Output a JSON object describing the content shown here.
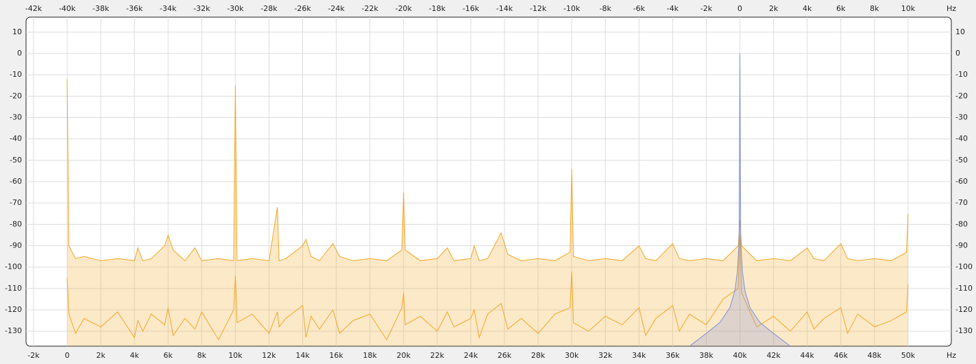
{
  "chart_data": {
    "type": "line",
    "x_unit": "Hz",
    "xlim": [
      -2445,
      52570
    ],
    "xticks": [
      {
        "value": -2000,
        "label": "-2k"
      },
      {
        "value": 0,
        "label": "0"
      },
      {
        "value": 2000,
        "label": "2k"
      },
      {
        "value": 4000,
        "label": "4k"
      },
      {
        "value": 6000,
        "label": "6k"
      },
      {
        "value": 8000,
        "label": "8k"
      },
      {
        "value": 10000,
        "label": "10k"
      },
      {
        "value": 12000,
        "label": "12k"
      },
      {
        "value": 14000,
        "label": "14k"
      },
      {
        "value": 16000,
        "label": "16k"
      },
      {
        "value": 18000,
        "label": "18k"
      },
      {
        "value": 20000,
        "label": "20k"
      },
      {
        "value": 22000,
        "label": "22k"
      },
      {
        "value": 24000,
        "label": "24k"
      },
      {
        "value": 26000,
        "label": "26k"
      },
      {
        "value": 28000,
        "label": "28k"
      },
      {
        "value": 30000,
        "label": "30k"
      },
      {
        "value": 32000,
        "label": "32k"
      },
      {
        "value": 34000,
        "label": "34k"
      },
      {
        "value": 36000,
        "label": "36k"
      },
      {
        "value": 38000,
        "label": "38k"
      },
      {
        "value": 40000,
        "label": "40k"
      },
      {
        "value": 42000,
        "label": "42k"
      },
      {
        "value": 44000,
        "label": "44k"
      },
      {
        "value": 46000,
        "label": "46k"
      },
      {
        "value": 48000,
        "label": "48k"
      },
      {
        "value": 50000,
        "label": "50k"
      }
    ],
    "x2lim": [
      -42445,
      12570
    ],
    "x2ticks": [
      {
        "value": -42000,
        "label": "-42k"
      },
      {
        "value": -40000,
        "label": "-40k"
      },
      {
        "value": -38000,
        "label": "-38k"
      },
      {
        "value": -36000,
        "label": "-36k"
      },
      {
        "value": -34000,
        "label": "-34k"
      },
      {
        "value": -32000,
        "label": "-32k"
      },
      {
        "value": -30000,
        "label": "-30k"
      },
      {
        "value": -28000,
        "label": "-28k"
      },
      {
        "value": -26000,
        "label": "-26k"
      },
      {
        "value": -24000,
        "label": "-24k"
      },
      {
        "value": -22000,
        "label": "-22k"
      },
      {
        "value": -20000,
        "label": "-20k"
      },
      {
        "value": -18000,
        "label": "-18k"
      },
      {
        "value": -16000,
        "label": "-16k"
      },
      {
        "value": -14000,
        "label": "-14k"
      },
      {
        "value": -12000,
        "label": "-12k"
      },
      {
        "value": -10000,
        "label": "-10k"
      },
      {
        "value": -8000,
        "label": "-8k"
      },
      {
        "value": -6000,
        "label": "-6k"
      },
      {
        "value": -4000,
        "label": "-4k"
      },
      {
        "value": -2000,
        "label": "-2k"
      },
      {
        "value": 0,
        "label": "0"
      },
      {
        "value": 2000,
        "label": "2k"
      },
      {
        "value": 4000,
        "label": "4k"
      },
      {
        "value": 6000,
        "label": "6k"
      },
      {
        "value": 8000,
        "label": "8k"
      },
      {
        "value": 10000,
        "label": "10k"
      }
    ],
    "ylim": [
      -137,
      17
    ],
    "yticks": [
      10,
      0,
      -10,
      -20,
      -30,
      -40,
      -50,
      -60,
      -70,
      -80,
      -90,
      -100,
      -110,
      -120,
      -130
    ],
    "grid": true,
    "series": [
      {
        "color": "#f5a623",
        "fill": true,
        "x": [
          0,
          100,
          500,
          1000,
          2000,
          3000,
          4000,
          4200,
          4500,
          5000,
          5800,
          6000,
          6300,
          7000,
          7600,
          8000,
          9000,
          9900,
          10000,
          10100,
          11000,
          12000,
          12500,
          12600,
          13000,
          14000,
          14200,
          14500,
          15000,
          15800,
          16200,
          17000,
          18000,
          19000,
          19900,
          20000,
          20100,
          21000,
          22000,
          22600,
          23000,
          24000,
          24200,
          24500,
          25000,
          25800,
          26200,
          27000,
          28000,
          29000,
          29900,
          30000,
          30100,
          31000,
          32000,
          33000,
          34000,
          34400,
          35000,
          36000,
          36400,
          37000,
          38000,
          39000,
          39900,
          40000,
          40100,
          41000,
          42000,
          43000,
          44000,
          44400,
          45000,
          46000,
          46400,
          47000,
          48000,
          49000,
          49900,
          50000
        ],
        "values": [
          -12,
          -90,
          -96,
          -95,
          -97,
          -96,
          -97,
          -91,
          -97,
          -96,
          -90,
          -85,
          -92,
          -97,
          -91,
          -97,
          -96,
          -97,
          -15,
          -97,
          -96,
          -97,
          -72,
          -97,
          -96,
          -90,
          -87,
          -95,
          -97,
          -89,
          -95,
          -97,
          -96,
          -97,
          -92,
          -65,
          -92,
          -97,
          -96,
          -91,
          -97,
          -96,
          -90,
          -97,
          -96,
          -84,
          -94,
          -97,
          -96,
          -97,
          -93,
          -54,
          -95,
          -97,
          -96,
          -97,
          -90,
          -96,
          -97,
          -89,
          -96,
          -97,
          -96,
          -97,
          -90,
          -78,
          -90,
          -97,
          -96,
          -97,
          -91,
          -96,
          -97,
          -89,
          -96,
          -97,
          -96,
          -97,
          -93,
          -75
        ]
      },
      {
        "color": "#f5a623",
        "fill": false,
        "x": [
          0,
          100,
          500,
          1000,
          2000,
          3000,
          4000,
          4200,
          4500,
          5000,
          5800,
          6000,
          6300,
          7000,
          7600,
          8000,
          9000,
          9900,
          10000,
          10100,
          11000,
          12000,
          12500,
          12600,
          13000,
          14000,
          14200,
          14500,
          15000,
          15800,
          16200,
          17000,
          18000,
          19000,
          19900,
          20000,
          20100,
          21000,
          22000,
          22600,
          23000,
          24000,
          24200,
          24500,
          25000,
          25800,
          26200,
          27000,
          28000,
          29000,
          29900,
          30000,
          30100,
          31000,
          32000,
          33000,
          34000,
          34400,
          35000,
          36000,
          36400,
          37000,
          38000,
          39000,
          39900,
          40000,
          40100,
          41000,
          42000,
          43000,
          44000,
          44400,
          45000,
          46000,
          46400,
          47000,
          48000,
          49000,
          49900,
          50000
        ],
        "values": [
          -105,
          -122,
          -131,
          -124,
          -128,
          -121,
          -133,
          -125,
          -130,
          -122,
          -127,
          -119,
          -132,
          -124,
          -129,
          -121,
          -134,
          -120,
          -104,
          -126,
          -122,
          -131,
          -121,
          -128,
          -124,
          -118,
          -133,
          -123,
          -129,
          -120,
          -131,
          -125,
          -122,
          -134,
          -119,
          -112,
          -127,
          -123,
          -130,
          -121,
          -128,
          -124,
          -120,
          -133,
          -122,
          -117,
          -129,
          -124,
          -131,
          -122,
          -119,
          -102,
          -126,
          -130,
          -123,
          -127,
          -119,
          -132,
          -124,
          -118,
          -130,
          -122,
          -127,
          -115,
          -110,
          -85,
          -112,
          -128,
          -123,
          -130,
          -121,
          -129,
          -124,
          -119,
          -131,
          -122,
          -128,
          -125,
          -121,
          -108
        ]
      },
      {
        "color": "#7f8fd8",
        "fill": true,
        "x": [
          37000,
          38000,
          38800,
          39400,
          39700,
          39850,
          39950,
          40000,
          40050,
          40150,
          40300,
          40600,
          41200,
          42000,
          43000
        ],
        "values": [
          -137,
          -131,
          -126,
          -119,
          -111,
          -102,
          -88,
          0,
          -88,
          -102,
          -111,
          -119,
          -126,
          -131,
          -137
        ]
      }
    ]
  }
}
